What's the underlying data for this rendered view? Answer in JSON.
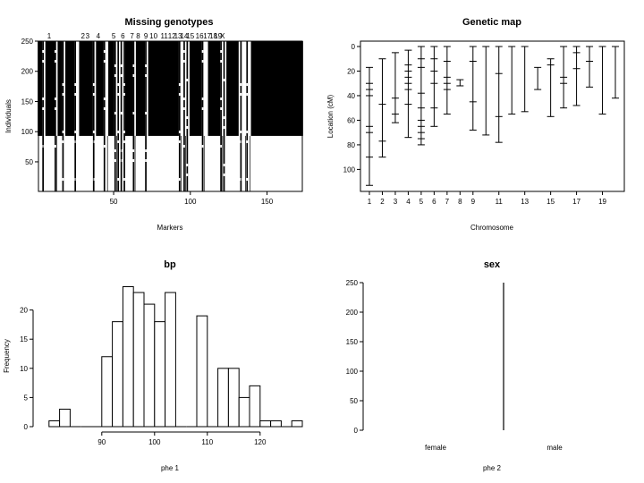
{
  "chart_data": [
    {
      "type": "heatmap",
      "title": "Missing genotypes",
      "xlabel": "Markers",
      "ylabel": "Individuals",
      "xlim": [
        1,
        173
      ],
      "ylim": [
        1,
        250
      ],
      "xticks": [
        50,
        100,
        150
      ],
      "yticks": [
        50,
        100,
        150,
        200,
        250
      ],
      "chromosome_labels": [
        "1",
        "2",
        "3",
        "4",
        "5",
        "6",
        "7",
        "8",
        "9",
        "10",
        "11",
        "12",
        "13",
        "14",
        "15",
        "16",
        "17",
        "18",
        "19",
        "X"
      ],
      "chromosome_label_x": [
        8,
        30,
        33,
        40,
        50,
        56,
        62,
        66,
        71,
        76,
        83,
        88,
        92,
        96,
        100,
        106,
        111,
        115,
        118,
        121
      ],
      "genotyped_rows": [
        1,
        92
      ],
      "missing_rows": [
        93,
        250
      ],
      "fully_missing_marker_ranges": [
        [
          1,
          3
        ],
        [
          6,
          11
        ],
        [
          14,
          16
        ],
        [
          19,
          24
        ],
        [
          28,
          36
        ],
        [
          39,
          43
        ],
        [
          47,
          50
        ],
        [
          58,
          62
        ],
        [
          65,
          70
        ],
        [
          73,
          92
        ],
        [
          100,
          107
        ],
        [
          112,
          119
        ],
        [
          124,
          131
        ],
        [
          140,
          173
        ]
      ],
      "partially_missing_markers": [
        4,
        12,
        17,
        25,
        37,
        44,
        51,
        53,
        55,
        57,
        63,
        71,
        93,
        96,
        98,
        108,
        120,
        122,
        133,
        137
      ]
    },
    {
      "type": "line",
      "title": "Genetic map",
      "xlabel": "Chromosome",
      "ylabel": "Location (cM)",
      "ylim": [
        0,
        115
      ],
      "yticks": [
        0,
        20,
        40,
        60,
        80,
        100
      ],
      "xtick_labels": [
        "1",
        "2",
        "3",
        "4",
        "5",
        "6",
        "7",
        "8",
        "9",
        "11",
        "13",
        "15",
        "17",
        "19"
      ],
      "chromosomes": [
        {
          "chr": "1",
          "markers": [
            17,
            30,
            35,
            40,
            65,
            70,
            90,
            113
          ]
        },
        {
          "chr": "2",
          "markers": [
            10,
            47,
            77,
            90
          ]
        },
        {
          "chr": "3",
          "markers": [
            5,
            42,
            55,
            62
          ]
        },
        {
          "chr": "4",
          "markers": [
            3,
            15,
            20,
            25,
            30,
            35,
            47,
            74
          ]
        },
        {
          "chr": "5",
          "markers": [
            0,
            10,
            17,
            38,
            50,
            60,
            65,
            70,
            75,
            80
          ]
        },
        {
          "chr": "6",
          "markers": [
            0,
            10,
            20,
            30,
            50,
            65
          ]
        },
        {
          "chr": "7",
          "markers": [
            0,
            12,
            25,
            30,
            35,
            55
          ]
        },
        {
          "chr": "8",
          "markers": [
            27,
            32
          ]
        },
        {
          "chr": "9",
          "markers": [
            0,
            12,
            45,
            68
          ]
        },
        {
          "chr": "10",
          "markers": [
            0,
            72
          ]
        },
        {
          "chr": "11",
          "markers": [
            0,
            22,
            57,
            78
          ]
        },
        {
          "chr": "12",
          "markers": [
            0,
            55
          ]
        },
        {
          "chr": "13",
          "markers": [
            0,
            53
          ]
        },
        {
          "chr": "14",
          "markers": [
            17,
            35
          ]
        },
        {
          "chr": "15",
          "markers": [
            10,
            15,
            57
          ]
        },
        {
          "chr": "16",
          "markers": [
            0,
            25,
            30,
            50
          ]
        },
        {
          "chr": "17",
          "markers": [
            0,
            5,
            18,
            48
          ]
        },
        {
          "chr": "18",
          "markers": [
            0,
            12,
            33
          ]
        },
        {
          "chr": "19",
          "markers": [
            0,
            55
          ]
        },
        {
          "chr": "X",
          "markers": [
            0,
            42
          ]
        }
      ]
    },
    {
      "type": "bar",
      "title": "bp",
      "xlabel": "phe 1",
      "ylabel": "Frequency",
      "xlim": [
        78,
        128
      ],
      "ylim": [
        0,
        25
      ],
      "xticks": [
        90,
        100,
        110,
        120
      ],
      "yticks": [
        0,
        5,
        10,
        15,
        20
      ],
      "bin_width": 2,
      "bin_starts": [
        80,
        82,
        84,
        86,
        88,
        90,
        92,
        94,
        96,
        98,
        100,
        102,
        104,
        106,
        108,
        110,
        112,
        114,
        116,
        118,
        120,
        122,
        124,
        126
      ],
      "values": [
        1,
        3,
        0,
        0,
        0,
        12,
        18,
        24,
        23,
        21,
        18,
        23,
        0,
        0,
        19,
        0,
        10,
        10,
        5,
        7,
        1,
        1,
        0,
        1
      ]
    },
    {
      "type": "bar",
      "title": "sex",
      "xlabel": "phe 2",
      "categories": [
        "female",
        "male"
      ],
      "values": [
        0,
        250
      ],
      "ylim": [
        0,
        250
      ],
      "yticks": [
        0,
        50,
        100,
        150,
        200,
        250
      ]
    }
  ]
}
